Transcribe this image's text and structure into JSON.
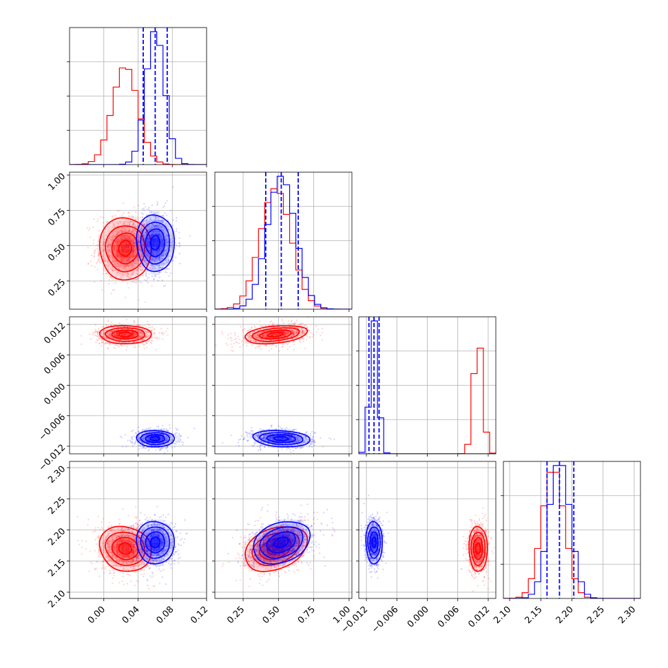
{
  "figure": {
    "type": "corner-plot",
    "series_colors": {
      "red": "#ff0000",
      "blue": "#0000ff"
    },
    "grid": true
  },
  "chart_data": {
    "type": "corner",
    "grid": true,
    "series": [
      {
        "color": "#ff0000",
        "means": [
          0.025,
          0.48,
          0.01,
          2.17
        ],
        "stds": [
          0.015,
          0.11,
          0.0009,
          0.018
        ],
        "correlations": {
          "1_0": 0.0,
          "2_0": 0.0,
          "2_1": 0.35,
          "3_0": -0.1,
          "3_1": 0.35,
          "3_2": 0.0
        }
      },
      {
        "color": "#0000ff",
        "means": [
          0.06,
          0.52,
          -0.0105,
          2.18
        ],
        "stds": [
          0.011,
          0.1,
          0.0008,
          0.017
        ],
        "correlations": {
          "1_0": 0.0,
          "2_0": 0.0,
          "2_1": -0.15,
          "3_0": 0.0,
          "3_1": 0.3,
          "3_2": 0.0
        },
        "quantile_lines": [
          [
            0.046,
            0.06,
            0.074
          ],
          [
            0.41,
            0.52,
            0.64
          ],
          [
            -0.0115,
            -0.0105,
            -0.0095
          ],
          [
            2.16,
            2.18,
            2.203
          ]
        ]
      }
    ],
    "axes": [
      {
        "range": [
          -0.04,
          0.12
        ],
        "ticks": [
          0.0,
          0.04,
          0.08,
          0.12
        ],
        "tick_labels": [
          "0.00",
          "0.04",
          "0.08",
          "0.12"
        ]
      },
      {
        "range": [
          0.05,
          1.02
        ],
        "ticks": [
          0.25,
          0.5,
          0.75,
          1.0
        ],
        "tick_labels": [
          "0.25",
          "0.50",
          "0.75",
          "1.00"
        ]
      },
      {
        "range": [
          -0.0135,
          0.0135
        ],
        "ticks": [
          -0.012,
          -0.006,
          0.0,
          0.006,
          0.012
        ],
        "tick_labels": [
          "−0.012",
          "−0.006",
          "0.000",
          "0.006",
          "0.012"
        ]
      },
      {
        "range": [
          2.09,
          2.31
        ],
        "ticks": [
          2.1,
          2.15,
          2.2,
          2.25,
          2.3
        ],
        "tick_labels": [
          "2.10",
          "2.15",
          "2.20",
          "2.25",
          "2.30"
        ]
      }
    ]
  }
}
